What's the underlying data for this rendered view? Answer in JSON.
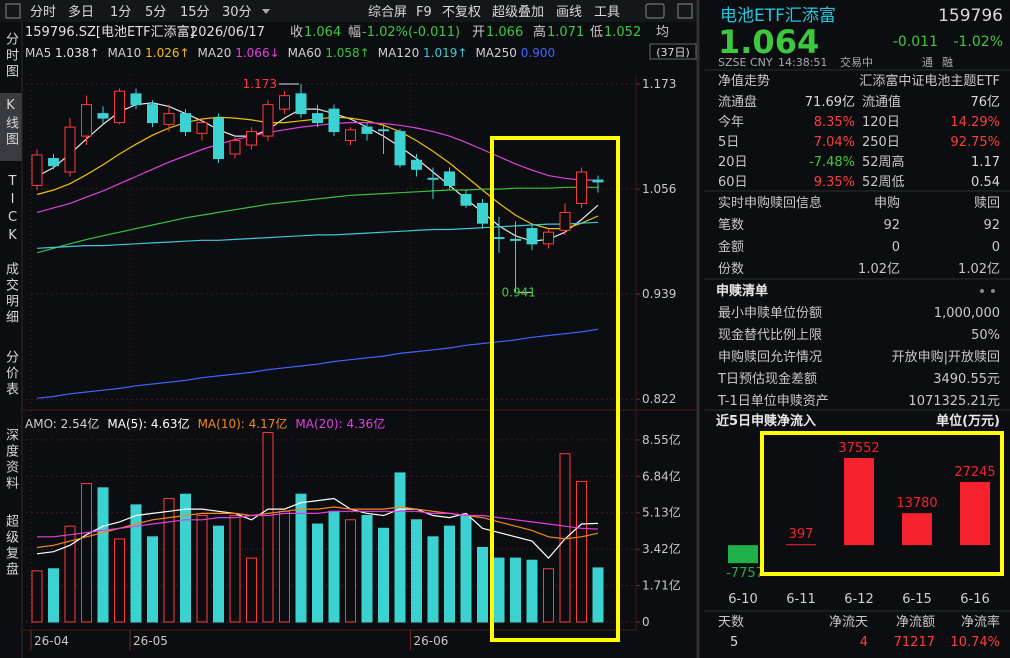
{
  "toolbar": {
    "periods": [
      "分时",
      "多日",
      "1分",
      "5分",
      "15分",
      "30分"
    ],
    "tools": [
      "综合屏",
      "F9",
      "不复权",
      "超级叠加",
      "画线",
      "工具"
    ]
  },
  "side_tabs": [
    "分时图",
    "K线图",
    "TICK",
    "成交明细",
    "分价表",
    "深度资料",
    "超级复盘"
  ],
  "quote_bar": {
    "symbol": "159796.SZ[电池ETF汇添富]",
    "date": "2026/06/17",
    "items": [
      {
        "label": "收",
        "value": "1.064"
      },
      {
        "label": "幅",
        "value": "-1.02%(-0.011)"
      },
      {
        "label": "开",
        "value": "1.066"
      },
      {
        "label": "高",
        "value": "1.071"
      },
      {
        "label": "低",
        "value": "1.052"
      }
    ],
    "avg": "均",
    "period_button": "(37日)"
  },
  "chart_data": [
    {
      "type": "candlestick",
      "up_color": "#ff3c3c",
      "down_color": "#3cd2d2",
      "grid": true,
      "categories": [
        "26-04",
        null,
        null,
        null,
        null,
        null,
        "26-05",
        null,
        null,
        null,
        null,
        null,
        null,
        null,
        null,
        null,
        null,
        null,
        null,
        null,
        null,
        null,
        null,
        "26-06",
        null,
        null,
        null,
        null,
        null,
        null,
        null,
        null,
        null,
        null,
        null
      ],
      "open": [
        1.06,
        1.09,
        1.075,
        1.115,
        1.14,
        1.13,
        1.162,
        1.15,
        1.128,
        1.14,
        1.118,
        1.135,
        1.095,
        1.105,
        1.115,
        1.145,
        1.162,
        1.14,
        1.145,
        1.11,
        1.125,
        1.122,
        1.12,
        1.088,
        1.068,
        1.075,
        1.05,
        1.04,
        1.002,
        1.0,
        1.012,
        0.995,
        1.01,
        1.04,
        1.066
      ],
      "high": [
        1.1,
        1.095,
        1.135,
        1.16,
        1.148,
        1.168,
        1.168,
        1.155,
        1.15,
        1.145,
        1.135,
        1.14,
        1.115,
        1.125,
        1.155,
        1.165,
        1.173,
        1.15,
        1.15,
        1.125,
        1.13,
        1.128,
        1.123,
        1.095,
        1.08,
        1.08,
        1.055,
        1.045,
        1.025,
        1.02,
        1.015,
        1.012,
        1.04,
        1.08,
        1.071
      ],
      "low": [
        1.055,
        1.078,
        1.07,
        1.105,
        1.128,
        1.128,
        1.145,
        1.125,
        1.12,
        1.115,
        1.11,
        1.085,
        1.09,
        1.1,
        1.11,
        1.14,
        1.135,
        1.125,
        1.115,
        1.105,
        1.11,
        1.095,
        1.08,
        1.07,
        1.045,
        1.055,
        1.035,
        1.012,
        0.985,
        0.941,
        0.988,
        0.99,
        1.005,
        1.035,
        1.052
      ],
      "close": [
        1.094,
        1.082,
        1.125,
        1.15,
        1.135,
        1.165,
        1.15,
        1.13,
        1.14,
        1.12,
        1.13,
        1.09,
        1.11,
        1.12,
        1.15,
        1.16,
        1.14,
        1.13,
        1.12,
        1.122,
        1.118,
        1.121,
        1.083,
        1.078,
        1.067,
        1.06,
        1.038,
        1.018,
        1.001,
        0.999,
        0.995,
        1.008,
        1.03,
        1.075,
        1.064
      ],
      "ylim": [
        0.81,
        1.183
      ],
      "yticks": [
        1.173,
        1.056,
        0.939,
        0.822
      ],
      "series": [
        {
          "name": "MA5",
          "color": "#e6e6e6",
          "value_label": "1.038↑",
          "values": [
            1.07,
            1.08,
            1.095,
            1.112,
            1.128,
            1.142,
            1.15,
            1.152,
            1.148,
            1.14,
            1.132,
            1.122,
            1.115,
            1.115,
            1.122,
            1.135,
            1.145,
            1.145,
            1.14,
            1.134,
            1.125,
            1.115,
            1.103,
            1.09,
            1.075,
            1.06,
            1.045,
            1.03,
            1.015,
            1.004,
            0.998,
            1.0,
            1.008,
            1.022,
            1.038
          ]
        },
        {
          "name": "MA10",
          "color": "#f0c000",
          "value_label": "1.026↑",
          "values": [
            1.05,
            1.055,
            1.062,
            1.072,
            1.083,
            1.095,
            1.106,
            1.116,
            1.124,
            1.13,
            1.134,
            1.136,
            1.135,
            1.133,
            1.13,
            1.13,
            1.132,
            1.134,
            1.136,
            1.135,
            1.132,
            1.127,
            1.12,
            1.11,
            1.098,
            1.085,
            1.07,
            1.055,
            1.04,
            1.027,
            1.017,
            1.012,
            1.012,
            1.018,
            1.026
          ]
        },
        {
          "name": "MA20",
          "color": "#e040e0",
          "value_label": "1.066↓",
          "values": [
            1.03,
            1.035,
            1.04,
            1.047,
            1.054,
            1.062,
            1.07,
            1.078,
            1.086,
            1.093,
            1.1,
            1.106,
            1.111,
            1.115,
            1.119,
            1.122,
            1.125,
            1.127,
            1.129,
            1.13,
            1.13,
            1.129,
            1.127,
            1.124,
            1.12,
            1.115,
            1.108,
            1.1,
            1.092,
            1.084,
            1.077,
            1.071,
            1.068,
            1.066,
            1.066
          ]
        },
        {
          "name": "MA60",
          "color": "#3cc03c",
          "value_label": "1.058↑",
          "values": [
            0.985,
            0.99,
            0.995,
            1.0,
            1.004,
            1.008,
            1.012,
            1.016,
            1.02,
            1.024,
            1.027,
            1.03,
            1.033,
            1.036,
            1.039,
            1.041,
            1.043,
            1.045,
            1.047,
            1.049,
            1.05,
            1.051,
            1.052,
            1.053,
            1.054,
            1.055,
            1.055,
            1.056,
            1.056,
            1.057,
            1.057,
            1.057,
            1.058,
            1.058,
            1.058
          ]
        },
        {
          "name": "MA120",
          "color": "#40c8d8",
          "value_label": "1.019↑",
          "values": [
            0.99,
            0.991,
            0.992,
            0.993,
            0.993,
            0.994,
            0.995,
            0.996,
            0.997,
            0.998,
            0.999,
            0.999,
            1.0,
            1.001,
            1.002,
            1.003,
            1.004,
            1.005,
            1.005,
            1.006,
            1.007,
            1.008,
            1.009,
            1.01,
            1.011,
            1.011,
            1.012,
            1.013,
            1.014,
            1.015,
            1.016,
            1.017,
            1.017,
            1.018,
            1.019
          ]
        },
        {
          "name": "MA250",
          "color": "#3f63ff",
          "value_label": "0.900",
          "values": [
            0.823,
            0.825,
            0.828,
            0.83,
            0.832,
            0.834,
            0.837,
            0.839,
            0.841,
            0.843,
            0.846,
            0.848,
            0.85,
            0.852,
            0.855,
            0.857,
            0.859,
            0.861,
            0.864,
            0.866,
            0.868,
            0.87,
            0.873,
            0.875,
            0.877,
            0.879,
            0.882,
            0.884,
            0.886,
            0.888,
            0.891,
            0.893,
            0.895,
            0.897,
            0.9
          ]
        }
      ]
    },
    {
      "type": "volume",
      "name": "AMO:",
      "value_label": "2.54亿",
      "color": "#d0d0d0",
      "values": [
        2.4,
        2.5,
        4.5,
        6.5,
        6.3,
        3.9,
        5.5,
        4.0,
        5.8,
        6.0,
        5.0,
        4.5,
        5.0,
        3.0,
        8.9,
        5.2,
        6.0,
        4.6,
        5.2,
        4.8,
        5.0,
        4.4,
        7.0,
        4.8,
        4.0,
        4.5,
        5.0,
        3.5,
        3.0,
        3.0,
        2.9,
        2.5,
        7.9,
        6.6,
        2.54
      ],
      "ylim": [
        0,
        9.25
      ],
      "yticks": [
        {
          "value": 8.55,
          "label": "8.55亿"
        },
        {
          "value": 6.84,
          "label": "6.84亿"
        },
        {
          "value": 5.13,
          "label": "5.13亿"
        },
        {
          "value": 3.42,
          "label": "3.42亿"
        },
        {
          "value": 1.71,
          "label": "1.71亿"
        },
        0
      ],
      "series": [
        {
          "name": "MA(5):",
          "color": "#ffffff",
          "value_label": "4.63亿",
          "values": [
            3.2,
            3.3,
            3.6,
            4.1,
            4.5,
            4.7,
            5.0,
            5.1,
            5.2,
            5.3,
            5.3,
            5.2,
            5.1,
            4.8,
            5.3,
            5.3,
            5.6,
            5.7,
            5.8,
            5.3,
            5.1,
            5.0,
            5.3,
            5.3,
            5.0,
            4.9,
            5.1,
            4.4,
            4.2,
            4.0,
            3.8,
            3.0,
            3.9,
            4.6,
            4.63
          ]
        },
        {
          "name": "MA(10):",
          "color": "#f08a1c",
          "value_label": "4.17亿",
          "values": [
            3.5,
            3.6,
            3.8,
            4.0,
            4.2,
            4.4,
            4.6,
            4.8,
            4.9,
            5.0,
            5.1,
            5.1,
            5.1,
            5.0,
            5.1,
            5.2,
            5.3,
            5.3,
            5.4,
            5.3,
            5.3,
            5.3,
            5.4,
            5.3,
            5.2,
            5.1,
            5.0,
            4.9,
            4.7,
            4.5,
            4.3,
            4.0,
            3.9,
            4.0,
            4.17
          ]
        },
        {
          "name": "MA(20):",
          "color": "#e040e0",
          "value_label": "4.36亿",
          "values": [
            4.0,
            4.0,
            4.1,
            4.2,
            4.3,
            4.4,
            4.5,
            4.6,
            4.7,
            4.8,
            4.8,
            4.9,
            4.9,
            5.0,
            5.0,
            5.1,
            5.1,
            5.1,
            5.2,
            5.2,
            5.2,
            5.2,
            5.2,
            5.2,
            5.1,
            5.1,
            5.0,
            5.0,
            4.9,
            4.8,
            4.7,
            4.6,
            4.5,
            4.4,
            4.36
          ]
        }
      ]
    },
    {
      "type": "bar",
      "title": "近5日申赎净流入",
      "unit": "单位(万元)",
      "categories": [
        "6-10",
        "6-11",
        "6-12",
        "6-15",
        "6-16"
      ],
      "values": [
        -7757,
        397,
        37552,
        13780,
        27245
      ],
      "pos_color": "#f5222d",
      "neg_color": "#1fb04a",
      "ylim": [
        -15000,
        49600
      ]
    }
  ],
  "panel": {
    "name": "电池ETF汇添富",
    "code": "159796",
    "price": "1.064",
    "change": "-0.011",
    "change_pct": "-1.02%",
    "status": [
      "SZSE",
      "CNY",
      "14:38:51",
      "交易中"
    ],
    "flags": [
      "通",
      "融"
    ],
    "nav": [
      "净值走势",
      "汇添富中证电池主题ETF"
    ],
    "stats": [
      [
        "流通盘",
        "71.69亿",
        "流通值",
        "76亿"
      ],
      [
        "今年",
        "8.35%",
        "120日",
        "14.29%"
      ],
      [
        "5日",
        "7.04%",
        "250日",
        "92.75%"
      ],
      [
        "20日",
        "-7.48%",
        "52周高",
        "1.17"
      ],
      [
        "60日",
        "9.35%",
        "52周低",
        "0.54"
      ]
    ],
    "creation": {
      "title": "实时申购赎回信息",
      "headers": [
        "申购",
        "赎回"
      ],
      "rows": [
        [
          "笔数",
          "92",
          "92"
        ],
        [
          "金额",
          "0",
          "0"
        ],
        [
          "份数",
          "1.02亿",
          "1.02亿"
        ]
      ]
    },
    "list": {
      "title": "申赎清单",
      "rows": [
        [
          "最小申赎单位份额",
          "1,000,000"
        ],
        [
          "现金替代比例上限",
          "50%"
        ],
        [
          "申购赎回允许情况",
          "开放申购|开放赎回"
        ],
        [
          "T日预估现金差额",
          "3490.55元"
        ],
        [
          "T-1日单位申赎资产",
          "1071325.21元"
        ]
      ]
    },
    "flow_stats": {
      "headers": [
        "天数",
        "净流天",
        "净流额",
        "净流率"
      ],
      "values": [
        "5",
        "4",
        "71217",
        "10.74%"
      ]
    }
  }
}
